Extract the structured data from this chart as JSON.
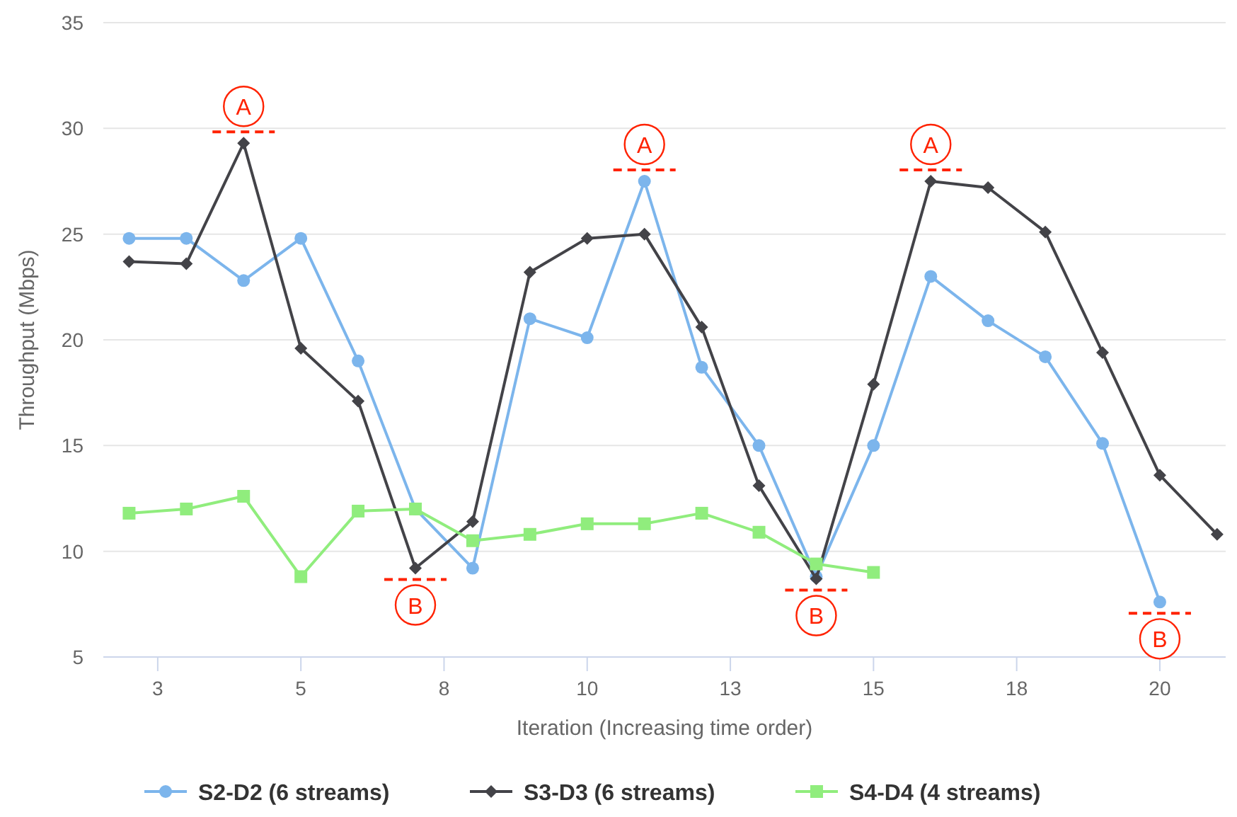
{
  "chart_data": {
    "type": "line",
    "xlabel": "Iteration (Increasing time order)",
    "ylabel": "Throughput (Mbps)",
    "xlim": [
      1.55,
      21.15
    ],
    "xticks": [
      {
        "value": 2.5,
        "label": "3"
      },
      5,
      {
        "value": 7.5,
        "label": "8"
      },
      10,
      {
        "value": 12.5,
        "label": "13"
      },
      15,
      {
        "value": 17.5,
        "label": "18"
      },
      20
    ],
    "ylim": [
      5,
      35
    ],
    "yticks": [
      5,
      10,
      15,
      20,
      25,
      30,
      35
    ],
    "grid": "y",
    "legend": "bottom",
    "line_style": "solid",
    "series": [
      {
        "name": "S2-D2 (6 streams)",
        "color": "#7cb5ec",
        "marker": "circle",
        "x": [
          2,
          3,
          4,
          5,
          6,
          7,
          8,
          9,
          10,
          11,
          12,
          13,
          14,
          15,
          16,
          17,
          18,
          19,
          20
        ],
        "values": [
          24.8,
          24.8,
          22.8,
          24.8,
          19.0,
          12.0,
          9.2,
          21.0,
          20.1,
          27.5,
          18.7,
          15.0,
          8.8,
          15.0,
          23.0,
          20.9,
          19.2,
          15.1,
          7.6
        ]
      },
      {
        "name": "S3-D3 (6 streams)",
        "color": "#434348",
        "marker": "diamond",
        "x": [
          2,
          3,
          4,
          5,
          6,
          7,
          8,
          9,
          10,
          11,
          12,
          13,
          14,
          15,
          16,
          17,
          18,
          19,
          20,
          21
        ],
        "values": [
          23.7,
          23.6,
          29.3,
          19.6,
          17.1,
          9.2,
          11.4,
          23.2,
          24.8,
          25.0,
          20.6,
          13.1,
          8.7,
          17.9,
          27.5,
          27.2,
          25.1,
          19.4,
          13.6,
          10.8
        ]
      },
      {
        "name": "S4-D4 (4 streams)",
        "color": "#90ed7d",
        "marker": "square",
        "x": [
          2,
          3,
          4,
          5,
          6,
          7,
          8,
          9,
          10,
          11,
          12,
          13,
          14,
          15
        ],
        "values": [
          11.8,
          12.0,
          12.6,
          8.8,
          11.9,
          12.0,
          10.5,
          10.8,
          11.3,
          11.3,
          11.8,
          10.9,
          9.4,
          9.0
        ]
      }
    ],
    "annotations": [
      {
        "text": "A",
        "x": 4,
        "y": 29.3
      },
      {
        "text": "B",
        "x": 7,
        "y": 9.2
      },
      {
        "text": "A",
        "x": 11,
        "y": 27.5
      },
      {
        "text": "B",
        "x": 14,
        "y": 8.7
      },
      {
        "text": "A",
        "x": 16,
        "y": 27.5
      },
      {
        "text": "B",
        "x": 20,
        "y": 7.6
      }
    ]
  }
}
